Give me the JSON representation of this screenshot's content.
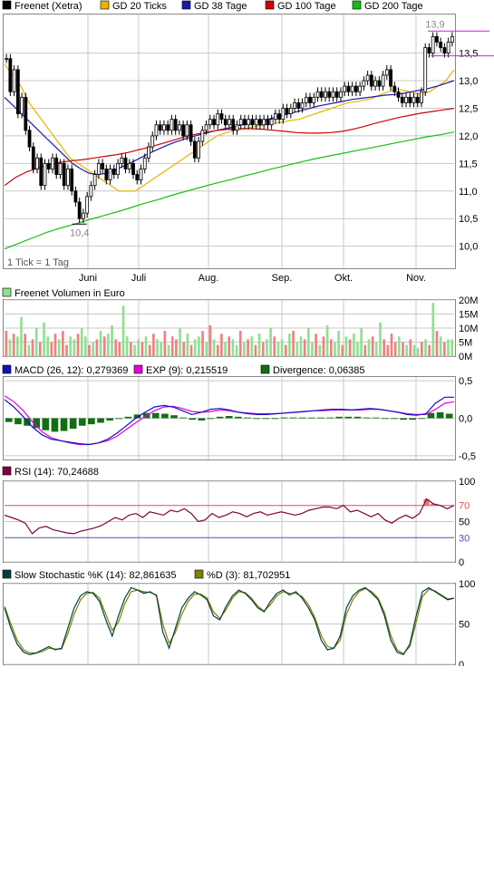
{
  "colors": {
    "price": "#000000",
    "gd20": "#e8b400",
    "gd38": "#1a1aa8",
    "gd100": "#d00000",
    "gd200": "#10c010",
    "volume_up": "#90e090",
    "volume_down": "#f08080",
    "macd": "#1010c0",
    "exp": "#e000e0",
    "divergence": "#107010",
    "rsi": "#800040",
    "rsi_70": "#e05050",
    "rsi_30": "#5050c0",
    "stoch_k": "#004040",
    "stoch_d": "#808000",
    "grid": "#c8c8c8",
    "bottom_fill": "#00ff00"
  },
  "chart_data": [
    {
      "type": "line",
      "panel": "price",
      "legend": [
        "Freenet (Xetra)",
        "GD 20 Ticks",
        "GD 38 Tage",
        "GD 100 Tage",
        "GD 200 Tage"
      ],
      "x_ticks": [
        "Juni",
        "Juli",
        "Aug.",
        "Sep.",
        "Okt.",
        "Nov."
      ],
      "y_ticks": [
        "10,0",
        "10,5",
        "11,0",
        "11,5",
        "12,0",
        "12,5",
        "13,0",
        "13,5"
      ],
      "ylim": [
        9.6,
        14.2
      ],
      "footnote": "1 Tick = 1 Tag",
      "annotations": [
        {
          "label": "10,4",
          "value": 10.4,
          "day": 19
        },
        {
          "label": "13,9",
          "value": 13.9,
          "day": 112
        }
      ],
      "close": [
        13.4,
        12.8,
        13.2,
        12.4,
        12.7,
        12.1,
        11.8,
        11.4,
        11.6,
        11.1,
        11.5,
        11.4,
        11.6,
        11.3,
        11.5,
        11.1,
        11.4,
        11.0,
        10.8,
        10.5,
        10.6,
        10.9,
        11.1,
        11.3,
        11.5,
        11.4,
        11.2,
        11.4,
        11.3,
        11.5,
        11.6,
        11.4,
        11.5,
        11.3,
        11.2,
        11.4,
        11.6,
        11.8,
        12.0,
        12.2,
        12.1,
        12.2,
        12.1,
        12.3,
        12.1,
        12.2,
        12.0,
        12.2,
        11.9,
        11.6,
        11.9,
        12.1,
        12.2,
        12.3,
        12.2,
        12.4,
        12.3,
        12.2,
        12.3,
        12.1,
        12.2,
        12.3,
        12.2,
        12.3,
        12.2,
        12.3,
        12.2,
        12.3,
        12.2,
        12.3,
        12.4,
        12.3,
        12.5,
        12.4,
        12.5,
        12.6,
        12.5,
        12.6,
        12.7,
        12.6,
        12.7,
        12.8,
        12.7,
        12.8,
        12.7,
        12.8,
        12.7,
        12.8,
        12.9,
        12.8,
        12.9,
        12.8,
        12.9,
        13.0,
        13.1,
        12.9,
        13.0,
        12.9,
        13.1,
        13.2,
        12.9,
        12.8,
        12.7,
        12.6,
        12.7,
        12.6,
        12.7,
        12.6,
        12.8,
        13.6,
        13.5,
        13.8,
        13.7,
        13.6,
        13.5,
        13.7,
        13.8
      ],
      "series": [
        {
          "name": "GD 20 Ticks",
          "values": [
            13.3,
            13.1,
            12.9,
            12.6,
            12.4,
            12.2,
            12.0,
            11.8,
            11.6,
            11.5,
            11.4,
            11.3,
            11.2,
            11.1,
            11.0,
            11.0,
            11.0,
            11.1,
            11.2,
            11.3,
            11.4,
            11.5,
            11.6,
            11.7,
            11.8,
            11.9,
            12.0,
            12.05,
            12.1,
            12.12,
            12.15,
            12.18,
            12.2,
            12.22,
            12.25,
            12.28,
            12.3,
            12.35,
            12.4,
            12.45,
            12.5,
            12.55,
            12.6,
            12.62,
            12.65,
            12.68,
            12.75,
            12.8,
            12.85,
            12.82,
            12.78,
            12.75,
            12.8,
            12.9,
            13.0,
            13.2
          ]
        },
        {
          "name": "GD 38 Tage",
          "values": [
            12.7,
            12.55,
            12.4,
            12.25,
            12.1,
            11.95,
            11.8,
            11.65,
            11.5,
            11.4,
            11.32,
            11.3,
            11.32,
            11.38,
            11.45,
            11.52,
            11.6,
            11.68,
            11.75,
            11.82,
            11.88,
            11.93,
            11.98,
            12.02,
            12.06,
            12.1,
            12.13,
            12.16,
            12.2,
            12.23,
            12.26,
            12.3,
            12.34,
            12.38,
            12.42,
            12.46,
            12.5,
            12.54,
            12.57,
            12.6,
            12.63,
            12.66,
            12.68,
            12.7,
            12.72,
            12.74,
            12.75,
            12.77,
            12.8,
            12.83,
            12.86,
            12.9,
            12.95,
            13.0
          ]
        },
        {
          "name": "GD 100 Tage",
          "values": [
            11.1,
            11.25,
            11.35,
            11.42,
            11.48,
            11.52,
            11.55,
            11.57,
            11.6,
            11.63,
            11.66,
            11.7,
            11.75,
            11.8,
            11.86,
            11.92,
            11.98,
            12.03,
            12.07,
            12.1,
            12.12,
            12.13,
            12.13,
            12.12,
            12.1,
            12.08,
            12.06,
            12.05,
            12.05,
            12.06,
            12.08,
            12.12,
            12.17,
            12.23,
            12.28,
            12.33,
            12.37,
            12.41,
            12.44,
            12.47,
            12.5
          ]
        },
        {
          "name": "GD 200 Tage",
          "values": [
            9.95,
            10.05,
            10.15,
            10.25,
            10.33,
            10.4,
            10.48,
            10.55,
            10.62,
            10.7,
            10.78,
            10.85,
            10.93,
            11.0,
            11.07,
            11.14,
            11.2,
            11.27,
            11.33,
            11.4,
            11.46,
            11.52,
            11.58,
            11.63,
            11.68,
            11.73,
            11.78,
            11.83,
            11.88,
            11.93,
            11.98,
            12.02,
            12.07
          ]
        }
      ]
    },
    {
      "type": "bar",
      "panel": "volume",
      "legend": [
        "Freenet Volumen in Euro"
      ],
      "y_ticks": [
        "0M",
        "5M",
        "10M",
        "15M",
        "20M"
      ],
      "ylim": [
        0,
        20
      ],
      "values": [
        9,
        6,
        8,
        7,
        14,
        8,
        4,
        6,
        10,
        5,
        12,
        7,
        5,
        8,
        6,
        9,
        4,
        7,
        6,
        8,
        10,
        7,
        4,
        5,
        6,
        9,
        7,
        8,
        11,
        6,
        5,
        18,
        7,
        5,
        4,
        6,
        5,
        7,
        4,
        8,
        6,
        5,
        9,
        4,
        7,
        6,
        10,
        5,
        8,
        4,
        6,
        7,
        9,
        5,
        11,
        6,
        4,
        8,
        5,
        7,
        6,
        4,
        9,
        5,
        6,
        7,
        4,
        8,
        5,
        6,
        10,
        7,
        5,
        6,
        4,
        8,
        9,
        5,
        7,
        6,
        10,
        5,
        8,
        4,
        7,
        11,
        6,
        5,
        9,
        4,
        7,
        6,
        8,
        5,
        10,
        4,
        6,
        7,
        5,
        12,
        6,
        4,
        8,
        5,
        7,
        5,
        4,
        6,
        4,
        3,
        5,
        6,
        4,
        19,
        9,
        7,
        5,
        6,
        6
      ],
      "up": [
        0,
        1,
        0,
        1,
        1,
        0,
        1,
        0,
        1,
        0,
        1,
        1,
        0,
        0,
        1,
        0,
        0,
        1,
        1,
        0,
        1,
        1,
        0,
        1,
        0,
        1,
        0,
        1,
        1,
        0,
        0,
        1,
        1,
        0,
        1,
        1,
        0,
        1,
        0,
        0,
        1,
        1,
        0,
        1,
        0,
        0,
        1,
        0,
        1,
        0,
        1,
        1,
        0,
        1,
        0,
        1,
        0,
        0,
        1,
        0,
        1,
        1,
        0,
        1,
        0,
        1,
        0,
        1,
        0,
        1,
        1,
        0,
        1,
        1,
        0,
        1,
        0,
        1,
        1,
        0,
        1,
        1,
        0,
        1,
        0,
        1,
        0,
        1,
        1,
        0,
        1,
        0,
        1,
        1,
        1,
        0,
        1,
        0,
        1,
        1,
        0,
        0,
        0,
        0,
        1,
        0,
        1,
        0,
        1,
        1,
        0,
        1,
        0,
        1,
        0,
        1,
        0,
        1,
        1
      ]
    },
    {
      "type": "line",
      "panel": "macd",
      "legend": [
        "MACD (26, 12): 0,279369",
        "EXP (9): 0,215519",
        "Divergence: 0,06385"
      ],
      "y_ticks": [
        "-0,5",
        "0,0",
        "0,5"
      ],
      "ylim": [
        -0.55,
        0.55
      ],
      "series": [
        {
          "name": "MACD (26, 12)",
          "values": [
            0.25,
            0.15,
            0.02,
            -0.12,
            -0.22,
            -0.28,
            -0.3,
            -0.32,
            -0.34,
            -0.35,
            -0.33,
            -0.28,
            -0.2,
            -0.1,
            0.0,
            0.08,
            0.15,
            0.17,
            0.15,
            0.1,
            0.05,
            0.08,
            0.12,
            0.13,
            0.11,
            0.08,
            0.06,
            0.05,
            0.05,
            0.06,
            0.07,
            0.08,
            0.09,
            0.1,
            0.11,
            0.12,
            0.12,
            0.11,
            0.12,
            0.13,
            0.12,
            0.1,
            0.08,
            0.05,
            0.04,
            0.06,
            0.2,
            0.28,
            0.28
          ]
        },
        {
          "name": "EXP (9)",
          "values": [
            0.3,
            0.22,
            0.1,
            -0.05,
            -0.18,
            -0.26,
            -0.3,
            -0.33,
            -0.35,
            -0.35,
            -0.33,
            -0.3,
            -0.24,
            -0.15,
            -0.06,
            0.02,
            0.1,
            0.15,
            0.16,
            0.13,
            0.09,
            0.08,
            0.09,
            0.11,
            0.1,
            0.08,
            0.07,
            0.06,
            0.06,
            0.06,
            0.07,
            0.08,
            0.09,
            0.1,
            0.1,
            0.11,
            0.11,
            0.11,
            0.11,
            0.12,
            0.12,
            0.1,
            0.08,
            0.06,
            0.05,
            0.05,
            0.12,
            0.2,
            0.22
          ]
        },
        {
          "name": "Divergence",
          "values": [
            -0.05,
            -0.08,
            -0.1,
            -0.13,
            -0.16,
            -0.18,
            -0.17,
            -0.14,
            -0.1,
            -0.08,
            -0.06,
            -0.03,
            -0.01,
            0.02,
            0.05,
            0.07,
            0.07,
            0.06,
            0.04,
            0.01,
            -0.02,
            -0.03,
            -0.01,
            0.02,
            0.03,
            0.02,
            0.01,
            0.0,
            -0.01,
            0.0,
            0.01,
            0.01,
            0.01,
            0.01,
            0.01,
            0.01,
            0.02,
            0.02,
            0.02,
            0.01,
            0.01,
            0.0,
            -0.01,
            -0.02,
            -0.02,
            0.0,
            0.07,
            0.08,
            0.06
          ]
        }
      ]
    },
    {
      "type": "line",
      "panel": "rsi",
      "legend": [
        "RSI (14): 70,24688"
      ],
      "y_ticks": [
        "0",
        "30",
        "50",
        "70",
        "100"
      ],
      "ylim": [
        0,
        100
      ],
      "guides": [
        70,
        30
      ],
      "values": [
        58,
        55,
        52,
        48,
        35,
        42,
        44,
        40,
        38,
        36,
        35,
        38,
        40,
        42,
        45,
        50,
        55,
        52,
        58,
        60,
        55,
        62,
        60,
        58,
        64,
        62,
        66,
        60,
        50,
        52,
        60,
        55,
        58,
        62,
        60,
        56,
        60,
        62,
        58,
        60,
        62,
        60,
        58,
        60,
        64,
        66,
        68,
        68,
        66,
        70,
        62,
        64,
        60,
        56,
        60,
        52,
        48,
        54,
        58,
        54,
        60,
        78,
        72,
        70,
        66,
        70
      ]
    },
    {
      "type": "line",
      "panel": "stochastic",
      "legend": [
        "Slow Stochastic %K (14): 82,861635",
        "%D (3): 81,702951"
      ],
      "y_ticks": [
        "0",
        "50",
        "100"
      ],
      "ylim": [
        0,
        100
      ],
      "series": [
        {
          "name": "Slow Stochastic %K (14)",
          "values": [
            70,
            45,
            25,
            15,
            12,
            14,
            18,
            22,
            18,
            20,
            45,
            70,
            85,
            90,
            88,
            78,
            55,
            35,
            60,
            82,
            95,
            92,
            88,
            90,
            85,
            40,
            20,
            45,
            70,
            82,
            90,
            86,
            80,
            60,
            55,
            72,
            85,
            92,
            88,
            80,
            70,
            65,
            78,
            88,
            92,
            86,
            90,
            82,
            70,
            55,
            30,
            18,
            20,
            35,
            70,
            85,
            92,
            95,
            88,
            80,
            60,
            30,
            15,
            12,
            25,
            60,
            90,
            95,
            90,
            85,
            80,
            82
          ]
        },
        {
          "name": "%D (3)",
          "values": [
            72,
            50,
            30,
            18,
            14,
            14,
            16,
            20,
            19,
            19,
            38,
            62,
            80,
            88,
            89,
            82,
            62,
            42,
            52,
            75,
            90,
            92,
            90,
            89,
            86,
            50,
            26,
            40,
            62,
            78,
            87,
            87,
            82,
            65,
            57,
            68,
            82,
            90,
            89,
            82,
            72,
            66,
            74,
            85,
            90,
            88,
            88,
            84,
            74,
            58,
            36,
            22,
            20,
            30,
            62,
            80,
            90,
            94,
            90,
            82,
            64,
            36,
            18,
            13,
            22,
            52,
            84,
            93,
            91,
            86,
            81,
            82
          ]
        }
      ]
    }
  ]
}
